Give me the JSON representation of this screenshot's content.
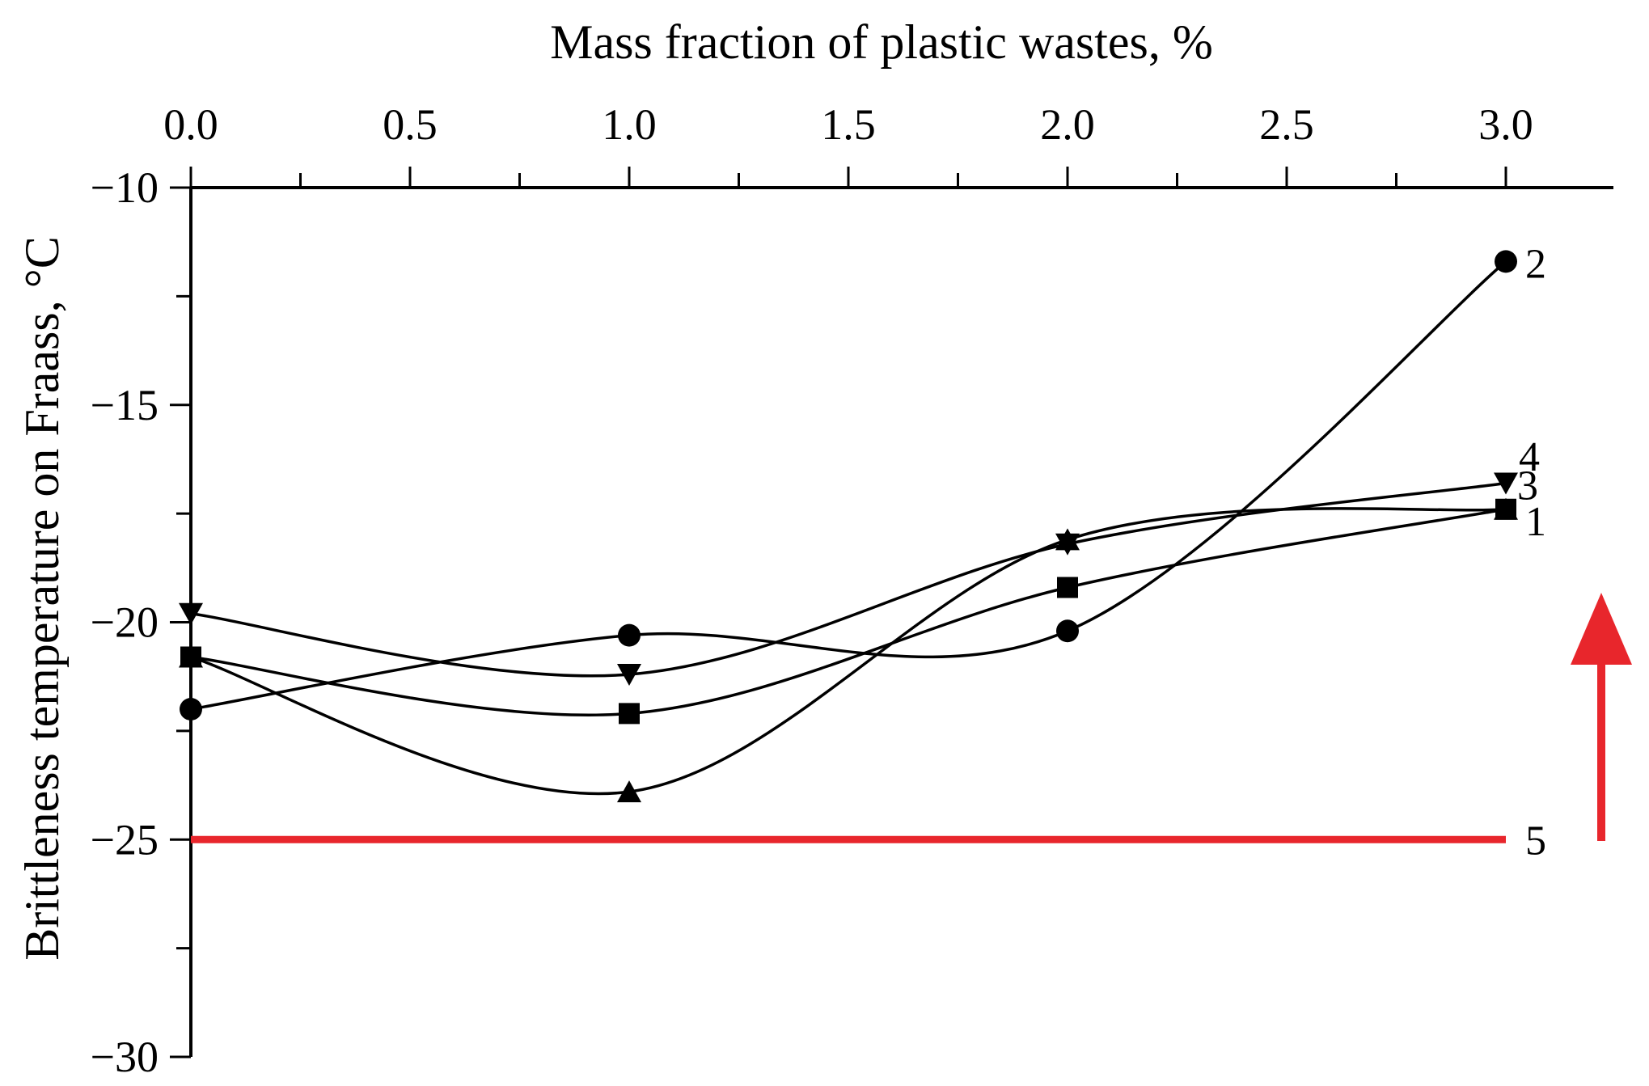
{
  "chart_data": {
    "type": "line",
    "xlabel": "Mass fraction of plastic wastes, %",
    "ylabel": "Brittleness temperature on Fraass, °C",
    "xlim": [
      0.0,
      3.0
    ],
    "ylim": [
      -30,
      -10
    ],
    "x_axis_position": "top",
    "x_ticks": [
      "0.0",
      "0.5",
      "1.0",
      "1.5",
      "2.0",
      "2.5",
      "3.0"
    ],
    "y_ticks": [
      "−10",
      "−15",
      "−20",
      "−25",
      "−30"
    ],
    "grid": false,
    "legend": "none; series are numbered at the right end of each curve",
    "series": [
      {
        "name": "1",
        "marker": "square",
        "x": [
          0.0,
          1.0,
          2.0,
          3.0
        ],
        "y": [
          -20.8,
          -22.1,
          -19.2,
          -17.4
        ]
      },
      {
        "name": "2",
        "marker": "circle",
        "x": [
          0.0,
          1.0,
          2.0,
          3.0
        ],
        "y": [
          -22.0,
          -20.3,
          -20.2,
          -11.7
        ]
      },
      {
        "name": "3",
        "marker": "triangle-down",
        "x": [
          0.0,
          1.0,
          2.0,
          3.0
        ],
        "y": [
          -19.8,
          -21.2,
          -18.2,
          -16.8
        ]
      },
      {
        "name": "4",
        "marker": "triangle-up",
        "x": [
          0.0,
          1.0,
          2.0,
          3.0
        ],
        "y": [
          -20.8,
          -23.9,
          -18.1,
          -17.4
        ]
      },
      {
        "name": "5",
        "marker": "none",
        "color": "#e8262c",
        "x": [
          0.0,
          3.0
        ],
        "y": [
          -25.0,
          -25.0
        ]
      }
    ],
    "arrow": {
      "color": "#e8262c",
      "direction": "up"
    }
  }
}
